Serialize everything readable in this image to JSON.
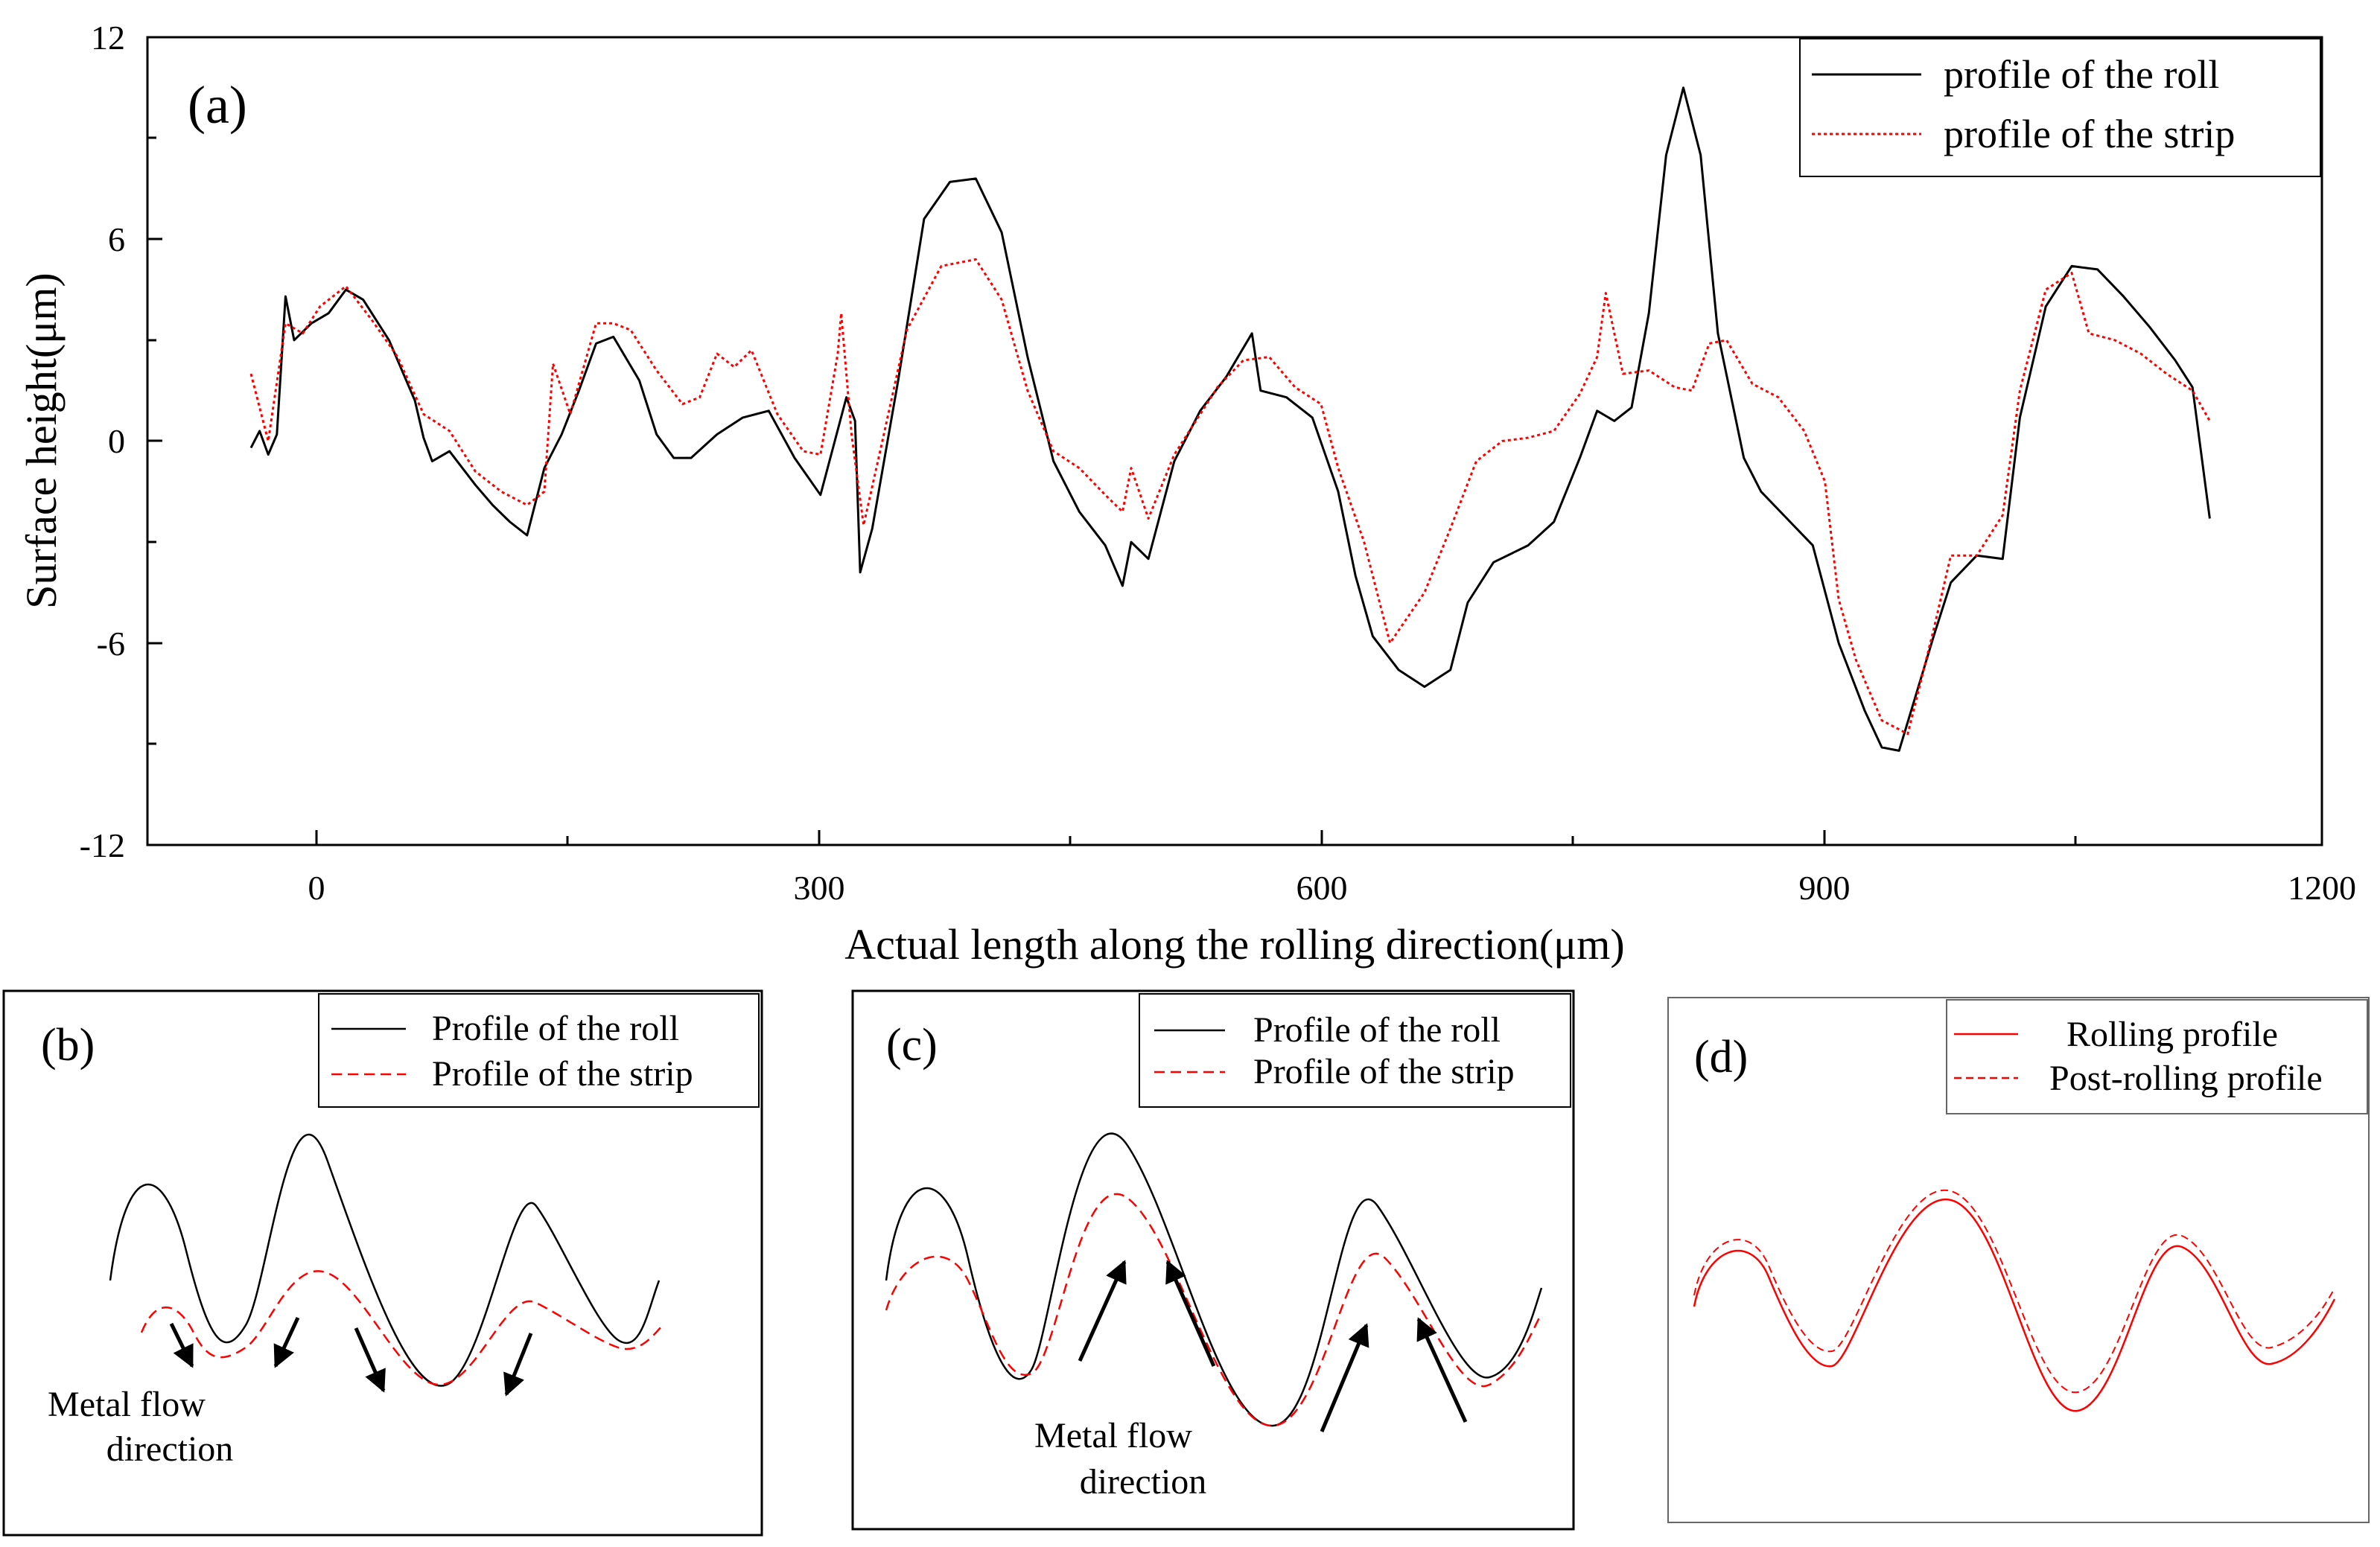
{
  "chart_data": [
    {
      "panel": "(a)",
      "type": "line",
      "xlabel": "Actual length along the rolling direction(μm)",
      "ylabel": "Surface height(μm)",
      "xlim": [
        -60,
        1200
      ],
      "ylim": [
        -12,
        12
      ],
      "x_ticks": [
        "0",
        "300",
        "600",
        "900",
        "1200"
      ],
      "y_ticks": [
        "12",
        "6",
        "0",
        "-6",
        "-12"
      ],
      "legend": "top-right",
      "series": [
        {
          "name": "profile of the roll",
          "color": "#000000",
          "style": "solid",
          "points": [
            [
              0,
              -0.2
            ],
            [
              5,
              0.3
            ],
            [
              10,
              -0.4
            ],
            [
              15,
              0.2
            ],
            [
              20,
              4.3
            ],
            [
              25,
              3.0
            ],
            [
              35,
              3.5
            ],
            [
              45,
              3.8
            ],
            [
              55,
              4.5
            ],
            [
              65,
              4.2
            ],
            [
              80,
              3.0
            ],
            [
              95,
              1.2
            ],
            [
              100,
              0.1
            ],
            [
              105,
              -0.6
            ],
            [
              115,
              -0.3
            ],
            [
              130,
              -1.3
            ],
            [
              140,
              -1.9
            ],
            [
              150,
              -2.4
            ],
            [
              160,
              -2.8
            ],
            [
              170,
              -0.8
            ],
            [
              180,
              0.2
            ],
            [
              190,
              1.5
            ],
            [
              200,
              2.9
            ],
            [
              210,
              3.1
            ],
            [
              225,
              1.8
            ],
            [
              235,
              0.2
            ],
            [
              245,
              -0.5
            ],
            [
              255,
              -0.5
            ],
            [
              270,
              0.2
            ],
            [
              285,
              0.7
            ],
            [
              300,
              0.9
            ],
            [
              315,
              -0.5
            ],
            [
              330,
              -1.6
            ],
            [
              345,
              1.3
            ],
            [
              350,
              0.6
            ],
            [
              353,
              -3.9
            ],
            [
              360,
              -2.6
            ],
            [
              375,
              1.8
            ],
            [
              390,
              6.6
            ],
            [
              405,
              7.7
            ],
            [
              420,
              7.8
            ],
            [
              435,
              6.2
            ],
            [
              450,
              2.5
            ],
            [
              465,
              -0.6
            ],
            [
              480,
              -2.1
            ],
            [
              495,
              -3.1
            ],
            [
              505,
              -4.3
            ],
            [
              510,
              -3.0
            ],
            [
              520,
              -3.5
            ],
            [
              535,
              -0.6
            ],
            [
              550,
              0.9
            ],
            [
              565,
              1.9
            ],
            [
              580,
              3.2
            ],
            [
              585,
              1.5
            ],
            [
              600,
              1.3
            ],
            [
              615,
              0.7
            ],
            [
              630,
              -1.5
            ],
            [
              640,
              -4.0
            ],
            [
              650,
              -5.8
            ],
            [
              665,
              -6.8
            ],
            [
              680,
              -7.3
            ],
            [
              695,
              -6.8
            ],
            [
              705,
              -4.8
            ],
            [
              720,
              -3.6
            ],
            [
              740,
              -3.1
            ],
            [
              755,
              -2.4
            ],
            [
              770,
              -0.5
            ],
            [
              780,
              0.9
            ],
            [
              790,
              0.6
            ],
            [
              800,
              1.0
            ],
            [
              810,
              3.8
            ],
            [
              820,
              8.5
            ],
            [
              830,
              10.5
            ],
            [
              840,
              8.5
            ],
            [
              850,
              3.2
            ],
            [
              865,
              -0.5
            ],
            [
              875,
              -1.5
            ],
            [
              890,
              -2.3
            ],
            [
              905,
              -3.1
            ],
            [
              920,
              -6.0
            ],
            [
              935,
              -8.0
            ],
            [
              945,
              -9.1
            ],
            [
              955,
              -9.2
            ],
            [
              965,
              -7.5
            ],
            [
              975,
              -5.8
            ],
            [
              985,
              -4.2
            ],
            [
              1000,
              -3.4
            ],
            [
              1015,
              -3.5
            ],
            [
              1025,
              0.7
            ],
            [
              1040,
              4.0
            ],
            [
              1055,
              5.2
            ],
            [
              1070,
              5.1
            ],
            [
              1085,
              4.3
            ],
            [
              1100,
              3.4
            ],
            [
              1115,
              2.4
            ],
            [
              1125,
              1.6
            ],
            [
              1135,
              -2.3
            ]
          ]
        },
        {
          "name": "profile of the strip",
          "color": "#ff0000",
          "style": "dotted",
          "points": [
            [
              0,
              2.0
            ],
            [
              5,
              1.0
            ],
            [
              10,
              0.0
            ],
            [
              20,
              3.5
            ],
            [
              30,
              3.2
            ],
            [
              40,
              4.0
            ],
            [
              55,
              4.6
            ],
            [
              70,
              3.6
            ],
            [
              85,
              2.5
            ],
            [
              100,
              0.8
            ],
            [
              115,
              0.3
            ],
            [
              130,
              -0.9
            ],
            [
              145,
              -1.5
            ],
            [
              160,
              -1.9
            ],
            [
              170,
              -1.5
            ],
            [
              175,
              2.3
            ],
            [
              185,
              0.8
            ],
            [
              200,
              3.5
            ],
            [
              210,
              3.5
            ],
            [
              220,
              3.3
            ],
            [
              235,
              2.1
            ],
            [
              250,
              1.1
            ],
            [
              260,
              1.3
            ],
            [
              270,
              2.6
            ],
            [
              280,
              2.2
            ],
            [
              290,
              2.7
            ],
            [
              305,
              0.8
            ],
            [
              320,
              -0.3
            ],
            [
              330,
              -0.4
            ],
            [
              340,
              2.6
            ],
            [
              342,
              3.8
            ],
            [
              348,
              0.2
            ],
            [
              355,
              -2.5
            ],
            [
              365,
              -0.2
            ],
            [
              380,
              3.3
            ],
            [
              400,
              5.2
            ],
            [
              420,
              5.4
            ],
            [
              435,
              4.2
            ],
            [
              450,
              1.5
            ],
            [
              465,
              -0.3
            ],
            [
              480,
              -0.8
            ],
            [
              495,
              -1.6
            ],
            [
              505,
              -2.1
            ],
            [
              510,
              -0.8
            ],
            [
              520,
              -2.3
            ],
            [
              535,
              -0.4
            ],
            [
              550,
              0.8
            ],
            [
              560,
              1.6
            ],
            [
              575,
              2.4
            ],
            [
              590,
              2.5
            ],
            [
              605,
              1.6
            ],
            [
              620,
              1.1
            ],
            [
              630,
              -0.8
            ],
            [
              645,
              -3.0
            ],
            [
              660,
              -6.0
            ],
            [
              680,
              -4.5
            ],
            [
              695,
              -2.6
            ],
            [
              710,
              -0.6
            ],
            [
              725,
              0.0
            ],
            [
              740,
              0.1
            ],
            [
              755,
              0.3
            ],
            [
              770,
              1.4
            ],
            [
              780,
              2.5
            ],
            [
              785,
              4.4
            ],
            [
              795,
              2.0
            ],
            [
              810,
              2.1
            ],
            [
              825,
              1.6
            ],
            [
              835,
              1.5
            ],
            [
              845,
              2.9
            ],
            [
              855,
              3.0
            ],
            [
              870,
              1.7
            ],
            [
              885,
              1.3
            ],
            [
              900,
              0.3
            ],
            [
              912,
              -1.2
            ],
            [
              920,
              -4.7
            ],
            [
              930,
              -6.5
            ],
            [
              945,
              -8.3
            ],
            [
              960,
              -8.7
            ],
            [
              975,
              -5.6
            ],
            [
              985,
              -3.4
            ],
            [
              1000,
              -3.4
            ],
            [
              1015,
              -2.2
            ],
            [
              1025,
              1.5
            ],
            [
              1040,
              4.5
            ],
            [
              1055,
              5.0
            ],
            [
              1065,
              3.2
            ],
            [
              1080,
              3.0
            ],
            [
              1095,
              2.6
            ],
            [
              1110,
              2.0
            ],
            [
              1125,
              1.5
            ],
            [
              1135,
              0.6
            ]
          ]
        }
      ],
      "panel_label": "(a)"
    },
    {
      "panel": "(b)",
      "type": "line",
      "legend": "top-right",
      "series": [
        {
          "name": "Profile of the roll",
          "color": "#000000",
          "style": "solid"
        },
        {
          "name": "Profile of the strip",
          "color": "#ff0000",
          "style": "dashed"
        }
      ],
      "annotation": [
        "Metal flow",
        "direction"
      ],
      "panel_label": "(b)"
    },
    {
      "panel": "(c)",
      "type": "line",
      "legend": "top-right",
      "series": [
        {
          "name": "Profile of the roll",
          "color": "#000000",
          "style": "solid"
        },
        {
          "name": "Profile of the strip",
          "color": "#ff0000",
          "style": "dashed"
        }
      ],
      "annotation": [
        "Metal flow",
        "direction"
      ],
      "panel_label": "(c)"
    },
    {
      "panel": "(d)",
      "type": "line",
      "legend": "top-right",
      "series": [
        {
          "name": "Rolling profile",
          "color": "#ff0000",
          "style": "solid"
        },
        {
          "name": "Post-rolling profile",
          "color": "#ff0000",
          "style": "dashed"
        }
      ],
      "panel_label": "(d)"
    }
  ]
}
